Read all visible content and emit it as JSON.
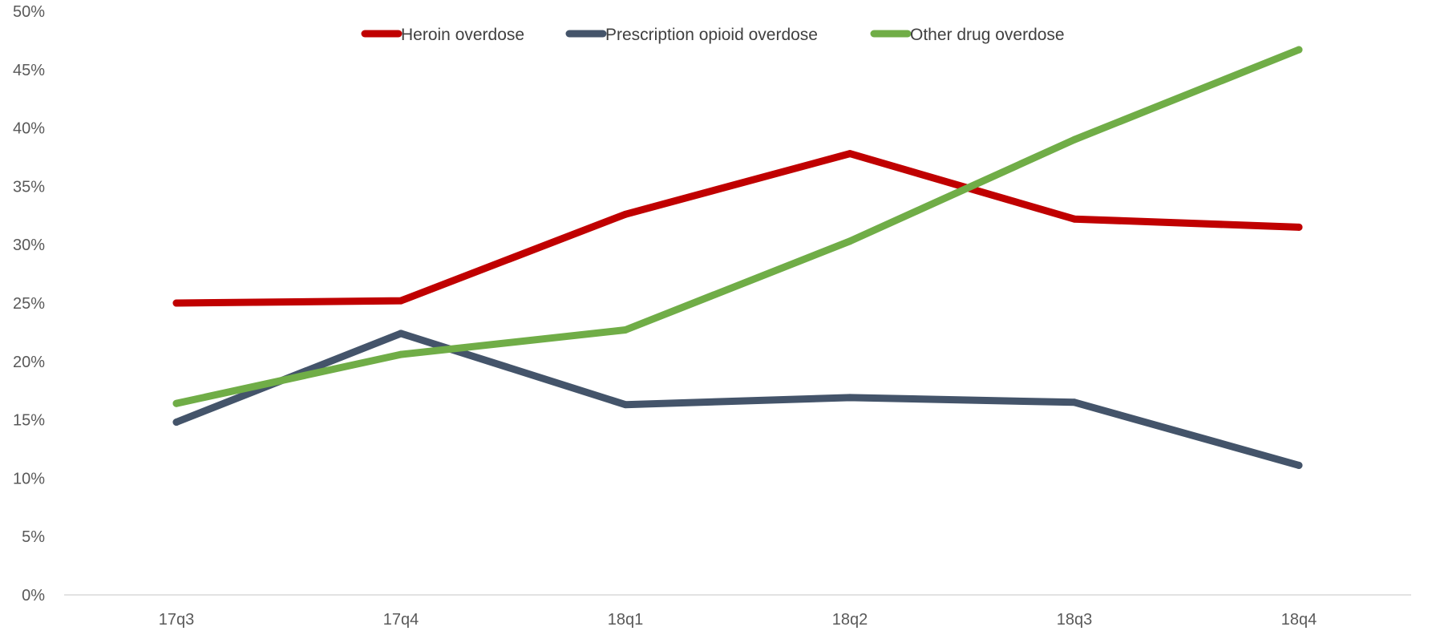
{
  "chart_data": {
    "type": "line",
    "title": "",
    "xlabel": "",
    "ylabel": "",
    "categories": [
      "17q3",
      "17q4",
      "18q1",
      "18q2",
      "18q3",
      "18q4"
    ],
    "y_ticks": [
      "0%",
      "5%",
      "10%",
      "15%",
      "20%",
      "25%",
      "30%",
      "35%",
      "40%",
      "45%",
      "50%"
    ],
    "ylim": [
      0,
      50
    ],
    "grid": false,
    "legend_position": "top",
    "series": [
      {
        "name": "Heroin overdose",
        "color": "#C00000",
        "values": [
          25.0,
          25.2,
          32.6,
          37.8,
          32.2,
          31.5
        ]
      },
      {
        "name": "Prescription opioid overdose",
        "color": "#44546A",
        "values": [
          14.8,
          22.4,
          16.3,
          16.9,
          16.5,
          11.1
        ]
      },
      {
        "name": "Other drug overdose",
        "color": "#70AD47",
        "values": [
          16.4,
          20.6,
          22.7,
          30.3,
          39.0,
          46.7
        ]
      }
    ]
  }
}
